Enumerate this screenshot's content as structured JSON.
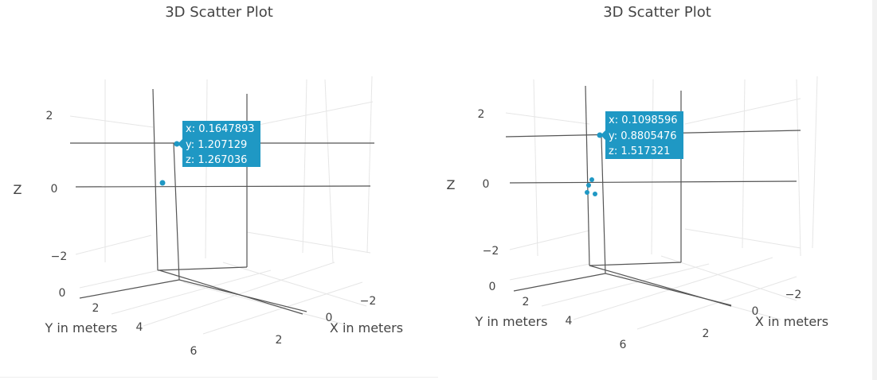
{
  "chart_data": [
    {
      "type": "scatter",
      "title": "3D Scatter Plot",
      "axes": {
        "x": {
          "label": "X in meters",
          "ticks": [
            "−2",
            "0",
            "2"
          ]
        },
        "y": {
          "label": "Y in meters",
          "ticks": [
            "2",
            "4",
            "6"
          ]
        },
        "z": {
          "label": "Z",
          "ticks": [
            "2",
            "0",
            "−2",
            "0"
          ]
        }
      },
      "points": [
        {
          "x": 0.1647893,
          "y": 1.207129,
          "z": 1.267036
        },
        {
          "x": 0.16,
          "y": 1.2,
          "z": 0.1
        }
      ],
      "hover": {
        "x": "x: 0.1647893",
        "y": "y: 1.207129",
        "z": "z: 1.267036"
      },
      "marker_color": "#1f98c4"
    },
    {
      "type": "scatter",
      "title": "3D Scatter Plot",
      "axes": {
        "x": {
          "label": "X in meters",
          "ticks": [
            "−2",
            "0",
            "2"
          ]
        },
        "y": {
          "label": "Y in meters",
          "ticks": [
            "2",
            "4",
            "6"
          ]
        },
        "z": {
          "label": "Z",
          "ticks": [
            "2",
            "0",
            "−2",
            "0"
          ]
        }
      },
      "points": [
        {
          "x": 0.1098596,
          "y": 0.8805476,
          "z": 1.517321
        },
        {
          "x": 0.2,
          "y": 0.9,
          "z": 0.2
        },
        {
          "x": 0.15,
          "y": 0.85,
          "z": 0.0
        },
        {
          "x": 0.1,
          "y": 0.8,
          "z": -0.3
        },
        {
          "x": 0.3,
          "y": 1.0,
          "z": -0.35
        }
      ],
      "hover": {
        "x": "x: 0.1098596",
        "y": "y: 0.8805476",
        "z": "z: 1.517321"
      },
      "marker_color": "#1f98c4"
    }
  ]
}
